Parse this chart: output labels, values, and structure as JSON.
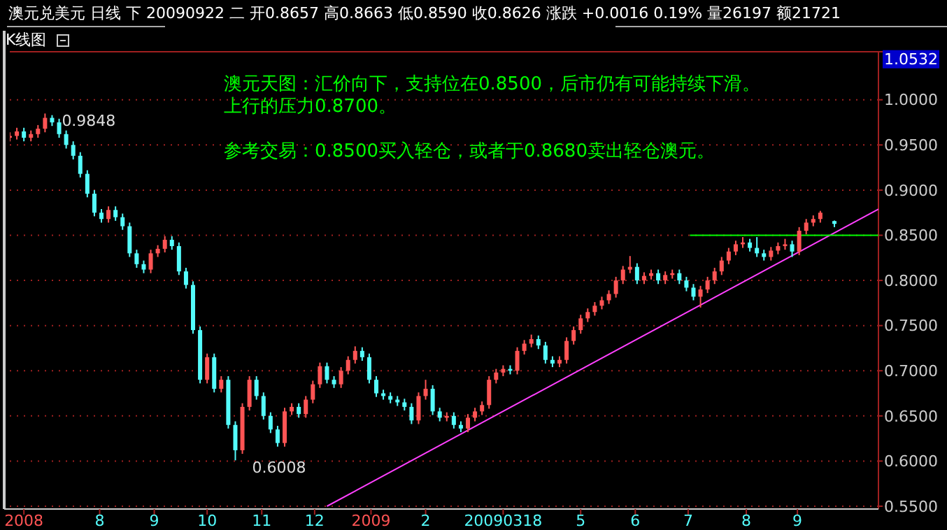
{
  "chart_data": {
    "type": "candlestick",
    "title": "澳元兑美元 日线 下 20090922 二 开0.8657 高0.8663 低0.8590 收0.8626 涨跌 +0.0016 0.19% 量26197 额21721",
    "subtitle": "K线图",
    "ylim": [
      0.55,
      1.0532
    ],
    "yticks": [
      {
        "value": 0.55,
        "label": "0.5500"
      },
      {
        "value": 0.6,
        "label": "0.6000"
      },
      {
        "value": 0.65,
        "label": "0.6500"
      },
      {
        "value": 0.7,
        "label": "0.7000"
      },
      {
        "value": 0.75,
        "label": "0.7500"
      },
      {
        "value": 0.8,
        "label": "0.8000"
      },
      {
        "value": 0.85,
        "label": "0.8500"
      },
      {
        "value": 0.9,
        "label": "0.9000"
      },
      {
        "value": 0.95,
        "label": "0.9500"
      },
      {
        "value": 1.0,
        "label": "1.0000"
      },
      {
        "value": 1.0532,
        "label": "1.0532"
      }
    ],
    "xlim": [
      "2008-06-11",
      "2009-10-17"
    ],
    "xticks": [
      {
        "value": "2008-06-19",
        "label": "2008"
      },
      {
        "value": "2008-08-01",
        "label": "8"
      },
      {
        "value": "2008-09-01",
        "label": "9"
      },
      {
        "value": "2008-10-01",
        "label": "10"
      },
      {
        "value": "2008-11-01",
        "label": "11"
      },
      {
        "value": "2008-12-01",
        "label": "12"
      },
      {
        "value": "2009-01-02",
        "label": "2009"
      },
      {
        "value": "2009-02-02",
        "label": "2"
      },
      {
        "value": "2009-03-18",
        "label": "20090318"
      },
      {
        "value": "2009-05-01",
        "label": "5"
      },
      {
        "value": "2009-06-01",
        "label": "6"
      },
      {
        "value": "2009-07-01",
        "label": "7"
      },
      {
        "value": "2009-08-03",
        "label": "8"
      },
      {
        "value": "2009-09-01",
        "label": "9"
      }
    ],
    "grid": "y",
    "series": [
      {
        "x": [
          "2008-06-11",
          "2008-06-15",
          "2008-06-19",
          "2008-06-23",
          "2008-06-27",
          "2008-07-01",
          "2008-07-05",
          "2008-07-09",
          "2008-07-13",
          "2008-07-17",
          "2008-07-21",
          "2008-07-25",
          "2008-07-29",
          "2008-08-02",
          "2008-08-06",
          "2008-08-10",
          "2008-08-14",
          "2008-08-18",
          "2008-08-22",
          "2008-08-26",
          "2008-08-30",
          "2008-09-03",
          "2008-09-07",
          "2008-09-11",
          "2008-09-15",
          "2008-09-19",
          "2008-09-23",
          "2008-09-27",
          "2008-10-01",
          "2008-10-05",
          "2008-10-09",
          "2008-10-13",
          "2008-10-17",
          "2008-10-21",
          "2008-10-25",
          "2008-10-29",
          "2008-11-02",
          "2008-11-06",
          "2008-11-10",
          "2008-11-14",
          "2008-11-18",
          "2008-11-22",
          "2008-11-26",
          "2008-11-30",
          "2008-12-04",
          "2008-12-08",
          "2008-12-12",
          "2008-12-16",
          "2008-12-20",
          "2008-12-24",
          "2008-12-28",
          "2009-01-01",
          "2009-01-05",
          "2009-01-09",
          "2009-01-13",
          "2009-01-17",
          "2009-01-21",
          "2009-01-25",
          "2009-01-29",
          "2009-02-02",
          "2009-02-06",
          "2009-02-10",
          "2009-02-14",
          "2009-02-18",
          "2009-02-22",
          "2009-02-26",
          "2009-03-02",
          "2009-03-06",
          "2009-03-10",
          "2009-03-14",
          "2009-03-18",
          "2009-03-22",
          "2009-03-26",
          "2009-03-30",
          "2009-04-03",
          "2009-04-07",
          "2009-04-11",
          "2009-04-15",
          "2009-04-19",
          "2009-04-23",
          "2009-04-27",
          "2009-05-01",
          "2009-05-05",
          "2009-05-09",
          "2009-05-13",
          "2009-05-17",
          "2009-05-21",
          "2009-05-25",
          "2009-05-29",
          "2009-06-02",
          "2009-06-06",
          "2009-06-10",
          "2009-06-14",
          "2009-06-18",
          "2009-06-22",
          "2009-06-26",
          "2009-06-30",
          "2009-07-04",
          "2009-07-08",
          "2009-07-12",
          "2009-07-16",
          "2009-07-20",
          "2009-07-24",
          "2009-07-28",
          "2009-08-01",
          "2009-08-05",
          "2009-08-09",
          "2009-08-13",
          "2009-08-17",
          "2009-08-21",
          "2009-08-25",
          "2009-08-29",
          "2009-09-02",
          "2009-09-06",
          "2009-09-10",
          "2009-09-14",
          "2009-09-22"
        ],
        "ohlc": [
          [
            0.958,
            0.964,
            0.954,
            0.96
          ],
          [
            0.96,
            0.969,
            0.956,
            0.965
          ],
          [
            0.965,
            0.969,
            0.954,
            0.958
          ],
          [
            0.958,
            0.966,
            0.954,
            0.962
          ],
          [
            0.962,
            0.972,
            0.958,
            0.968
          ],
          [
            0.968,
            0.9848,
            0.964,
            0.98
          ],
          [
            0.98,
            0.983,
            0.971,
            0.975
          ],
          [
            0.975,
            0.979,
            0.958,
            0.962
          ],
          [
            0.962,
            0.966,
            0.946,
            0.95
          ],
          [
            0.95,
            0.954,
            0.934,
            0.938
          ],
          [
            0.938,
            0.942,
            0.914,
            0.918
          ],
          [
            0.918,
            0.922,
            0.892,
            0.896
          ],
          [
            0.896,
            0.9,
            0.871,
            0.875
          ],
          [
            0.875,
            0.879,
            0.864,
            0.868
          ],
          [
            0.868,
            0.882,
            0.864,
            0.878
          ],
          [
            0.878,
            0.882,
            0.866,
            0.87
          ],
          [
            0.87,
            0.874,
            0.856,
            0.86
          ],
          [
            0.86,
            0.864,
            0.826,
            0.83
          ],
          [
            0.83,
            0.834,
            0.814,
            0.818
          ],
          [
            0.818,
            0.822,
            0.808,
            0.812
          ],
          [
            0.812,
            0.834,
            0.808,
            0.83
          ],
          [
            0.83,
            0.839,
            0.826,
            0.835
          ],
          [
            0.835,
            0.849,
            0.831,
            0.845
          ],
          [
            0.845,
            0.849,
            0.834,
            0.838
          ],
          [
            0.838,
            0.842,
            0.806,
            0.81
          ],
          [
            0.81,
            0.814,
            0.791,
            0.795
          ],
          [
            0.795,
            0.799,
            0.741,
            0.745
          ],
          [
            0.745,
            0.749,
            0.686,
            0.69
          ],
          [
            0.69,
            0.719,
            0.686,
            0.715
          ],
          [
            0.715,
            0.719,
            0.676,
            0.68
          ],
          [
            0.68,
            0.694,
            0.676,
            0.69
          ],
          [
            0.69,
            0.694,
            0.636,
            0.64
          ],
          [
            0.64,
            0.644,
            0.6008,
            0.612
          ],
          [
            0.612,
            0.664,
            0.608,
            0.66
          ],
          [
            0.66,
            0.694,
            0.656,
            0.69
          ],
          [
            0.69,
            0.694,
            0.668,
            0.672
          ],
          [
            0.672,
            0.676,
            0.646,
            0.65
          ],
          [
            0.65,
            0.654,
            0.631,
            0.635
          ],
          [
            0.635,
            0.639,
            0.616,
            0.62
          ],
          [
            0.62,
            0.659,
            0.616,
            0.655
          ],
          [
            0.655,
            0.664,
            0.651,
            0.66
          ],
          [
            0.66,
            0.664,
            0.648,
            0.652
          ],
          [
            0.652,
            0.672,
            0.648,
            0.668
          ],
          [
            0.668,
            0.689,
            0.664,
            0.685
          ],
          [
            0.685,
            0.709,
            0.681,
            0.705
          ],
          [
            0.705,
            0.709,
            0.686,
            0.69
          ],
          [
            0.69,
            0.694,
            0.681,
            0.685
          ],
          [
            0.685,
            0.704,
            0.681,
            0.7
          ],
          [
            0.7,
            0.716,
            0.696,
            0.712
          ],
          [
            0.712,
            0.727,
            0.708,
            0.722
          ],
          [
            0.722,
            0.726,
            0.711,
            0.715
          ],
          [
            0.715,
            0.719,
            0.686,
            0.69
          ],
          [
            0.69,
            0.694,
            0.671,
            0.675
          ],
          [
            0.675,
            0.679,
            0.668,
            0.672
          ],
          [
            0.672,
            0.676,
            0.664,
            0.668
          ],
          [
            0.668,
            0.672,
            0.661,
            0.665
          ],
          [
            0.665,
            0.669,
            0.656,
            0.66
          ],
          [
            0.66,
            0.664,
            0.641,
            0.645
          ],
          [
            0.645,
            0.676,
            0.641,
            0.672
          ],
          [
            0.672,
            0.69,
            0.668,
            0.68
          ],
          [
            0.68,
            0.684,
            0.651,
            0.655
          ],
          [
            0.655,
            0.659,
            0.644,
            0.648
          ],
          [
            0.648,
            0.654,
            0.644,
            0.65
          ],
          [
            0.65,
            0.654,
            0.636,
            0.64
          ],
          [
            0.64,
            0.644,
            0.632,
            0.636
          ],
          [
            0.636,
            0.652,
            0.632,
            0.648
          ],
          [
            0.648,
            0.659,
            0.644,
            0.655
          ],
          [
            0.655,
            0.666,
            0.651,
            0.662
          ],
          [
            0.662,
            0.694,
            0.658,
            0.69
          ],
          [
            0.69,
            0.702,
            0.686,
            0.698
          ],
          [
            0.698,
            0.706,
            0.694,
            0.702
          ],
          [
            0.702,
            0.706,
            0.696,
            0.7
          ],
          [
            0.7,
            0.726,
            0.696,
            0.722
          ],
          [
            0.722,
            0.734,
            0.718,
            0.73
          ],
          [
            0.73,
            0.74,
            0.726,
            0.735
          ],
          [
            0.735,
            0.739,
            0.724,
            0.728
          ],
          [
            0.728,
            0.732,
            0.708,
            0.712
          ],
          [
            0.712,
            0.716,
            0.704,
            0.708
          ],
          [
            0.708,
            0.716,
            0.704,
            0.712
          ],
          [
            0.712,
            0.737,
            0.708,
            0.733
          ],
          [
            0.733,
            0.749,
            0.729,
            0.745
          ],
          [
            0.745,
            0.762,
            0.741,
            0.758
          ],
          [
            0.758,
            0.769,
            0.754,
            0.765
          ],
          [
            0.765,
            0.776,
            0.761,
            0.772
          ],
          [
            0.772,
            0.782,
            0.768,
            0.778
          ],
          [
            0.778,
            0.789,
            0.774,
            0.785
          ],
          [
            0.785,
            0.804,
            0.781,
            0.8
          ],
          [
            0.8,
            0.816,
            0.796,
            0.812
          ],
          [
            0.812,
            0.827,
            0.808,
            0.815
          ],
          [
            0.815,
            0.819,
            0.796,
            0.8
          ],
          [
            0.8,
            0.809,
            0.796,
            0.805
          ],
          [
            0.805,
            0.812,
            0.801,
            0.808
          ],
          [
            0.808,
            0.812,
            0.796,
            0.8
          ],
          [
            0.8,
            0.81,
            0.796,
            0.806
          ],
          [
            0.806,
            0.812,
            0.802,
            0.808
          ],
          [
            0.808,
            0.812,
            0.796,
            0.8
          ],
          [
            0.8,
            0.804,
            0.788,
            0.792
          ],
          [
            0.792,
            0.796,
            0.778,
            0.782
          ],
          [
            0.782,
            0.794,
            0.77,
            0.79
          ],
          [
            0.79,
            0.804,
            0.786,
            0.8
          ],
          [
            0.8,
            0.814,
            0.796,
            0.81
          ],
          [
            0.81,
            0.826,
            0.806,
            0.822
          ],
          [
            0.822,
            0.836,
            0.818,
            0.832
          ],
          [
            0.832,
            0.844,
            0.828,
            0.84
          ],
          [
            0.84,
            0.848,
            0.836,
            0.842
          ],
          [
            0.842,
            0.846,
            0.832,
            0.836
          ],
          [
            0.836,
            0.848,
            0.826,
            0.83
          ],
          [
            0.83,
            0.834,
            0.822,
            0.826
          ],
          [
            0.826,
            0.837,
            0.822,
            0.833
          ],
          [
            0.833,
            0.842,
            0.829,
            0.838
          ],
          [
            0.838,
            0.846,
            0.834,
            0.84
          ],
          [
            0.84,
            0.844,
            0.826,
            0.832
          ],
          [
            0.832,
            0.859,
            0.828,
            0.855
          ],
          [
            0.855,
            0.868,
            0.851,
            0.864
          ],
          [
            0.864,
            0.872,
            0.86,
            0.868
          ],
          [
            0.868,
            0.877,
            0.864,
            0.875
          ],
          [
            0.8657,
            0.8663,
            0.859,
            0.8626
          ]
        ]
      },
      {
        "type": "line",
        "color": "#ff40ff",
        "x": [
          "2008-12-08",
          "2009-10-17"
        ],
        "values": [
          0.55,
          0.879
        ]
      },
      {
        "type": "line",
        "color": "#00ff00",
        "x": [
          "2009-07-02",
          "2009-10-17"
        ],
        "values": [
          0.85,
          0.85
        ]
      }
    ],
    "annotations": [
      "澳元天图：汇价向下，支持位在0.8500，后市仍有可能持续下滑。上行的压力0.8700。",
      "参考交易：0.8500买入轻仓，或者于0.8680卖出轻仓澳元。",
      {
        "text": "0.9848",
        "x": "2008-07-01",
        "y": 0.9848
      },
      {
        "text": "0.6008",
        "x": "2008-10-17",
        "y": 0.6008
      }
    ]
  }
}
